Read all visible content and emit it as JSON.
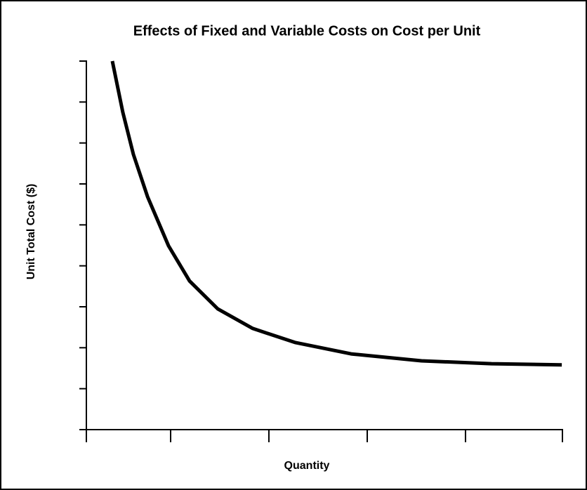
{
  "chart_data": {
    "type": "line",
    "title": "Effects of Fixed and Variable Costs on Cost per Unit",
    "x_label": "Quantity",
    "y_label": "Unit Total Cost ($)",
    "x": [
      0.273,
      0.383,
      0.494,
      0.642,
      0.863,
      1.084,
      1.379,
      1.748,
      2.19,
      2.78,
      3.52,
      4.255,
      4.993
    ],
    "values": [
      9,
      7.75,
      6.72,
      5.69,
      4.49,
      3.63,
      2.95,
      2.47,
      2.13,
      1.85,
      1.68,
      1.61,
      1.58
    ],
    "color": "#000000",
    "xlim": [
      0,
      5
    ],
    "xticks": [
      0,
      0.885,
      1.917,
      2.95,
      3.982,
      5
    ],
    "ylim": [
      0,
      9
    ],
    "yticks": [
      0,
      1,
      2,
      3,
      4,
      5,
      6,
      7,
      8,
      9
    ],
    "grid": false
  }
}
